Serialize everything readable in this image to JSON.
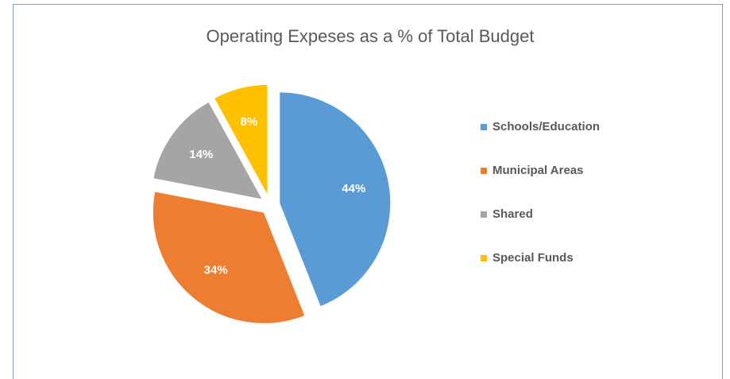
{
  "chart_data": {
    "type": "pie",
    "title": "Operating Expeses as a % of Total Budget",
    "categories": [
      "Schools/Education",
      "Municipal Areas",
      "Shared",
      "Special Funds"
    ],
    "values": [
      44,
      34,
      14,
      8
    ],
    "value_labels": [
      "44%",
      "34%",
      "14%",
      "8%"
    ],
    "colors": [
      "#5b9bd5",
      "#ed7d31",
      "#a5a5a5",
      "#ffc000"
    ],
    "legend": "right"
  }
}
